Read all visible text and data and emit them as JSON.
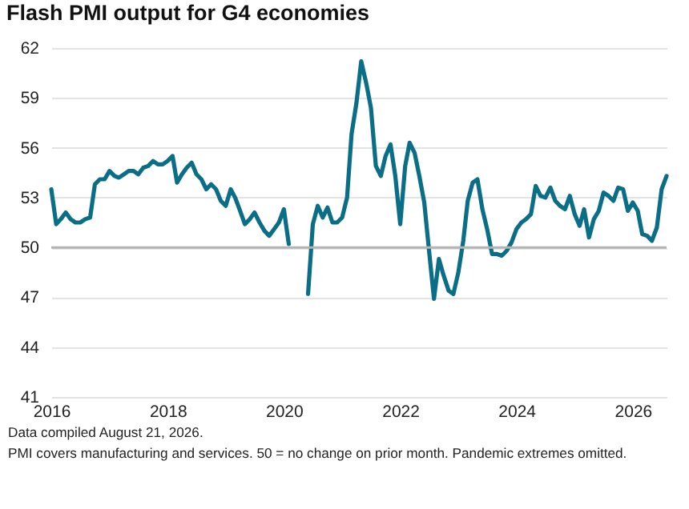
{
  "chart_data": {
    "type": "line",
    "title": "Flash PMI output for G4 economies",
    "x": [
      "2016-01",
      "2016-02",
      "2016-03",
      "2016-04",
      "2016-05",
      "2016-06",
      "2016-07",
      "2016-08",
      "2016-09",
      "2016-10",
      "2016-11",
      "2016-12",
      "2017-01",
      "2017-02",
      "2017-03",
      "2017-04",
      "2017-05",
      "2017-06",
      "2017-07",
      "2017-08",
      "2017-09",
      "2017-10",
      "2017-11",
      "2017-12",
      "2018-01",
      "2018-02",
      "2018-03",
      "2018-04",
      "2018-05",
      "2018-06",
      "2018-07",
      "2018-08",
      "2018-09",
      "2018-10",
      "2018-11",
      "2018-12",
      "2019-01",
      "2019-02",
      "2019-03",
      "2019-04",
      "2019-05",
      "2019-06",
      "2019-07",
      "2019-08",
      "2019-09",
      "2019-10",
      "2019-11",
      "2019-12",
      "2020-01",
      "2020-02",
      "2020-03",
      "2020-04",
      "2020-05",
      "2020-06",
      "2020-07",
      "2020-08",
      "2020-09",
      "2020-10",
      "2020-11",
      "2020-12",
      "2021-01",
      "2021-02",
      "2021-03",
      "2021-04",
      "2021-05",
      "2021-06",
      "2021-07",
      "2021-08",
      "2021-09",
      "2021-10",
      "2021-11",
      "2021-12",
      "2022-01",
      "2022-02",
      "2022-03",
      "2022-04",
      "2022-05",
      "2022-06",
      "2022-07",
      "2022-08",
      "2022-09",
      "2022-10",
      "2022-11",
      "2022-12",
      "2023-01",
      "2023-02",
      "2023-03",
      "2023-04",
      "2023-05",
      "2023-06",
      "2023-07",
      "2023-08",
      "2023-09",
      "2023-10",
      "2023-11",
      "2023-12",
      "2024-01",
      "2024-02",
      "2024-03",
      "2024-04",
      "2024-05",
      "2024-06",
      "2024-07",
      "2024-08",
      "2024-09",
      "2024-10",
      "2024-11",
      "2024-12",
      "2025-01",
      "2025-02",
      "2025-03",
      "2025-04",
      "2025-05",
      "2025-06",
      "2025-07",
      "2025-08",
      "2025-09",
      "2025-10",
      "2025-11",
      "2025-12",
      "2026-01",
      "2026-02",
      "2026-03",
      "2026-04",
      "2026-05",
      "2026-06",
      "2026-07",
      "2026-08"
    ],
    "series": [
      {
        "color": "#0b6e87",
        "values": [
          53.5,
          51.4,
          51.7,
          52.1,
          51.7,
          51.5,
          51.5,
          51.7,
          51.8,
          53.8,
          54.1,
          54.1,
          54.6,
          54.3,
          54.2,
          54.4,
          54.6,
          54.6,
          54.4,
          54.8,
          54.9,
          55.2,
          55.0,
          55.0,
          55.2,
          55.5,
          53.9,
          54.4,
          54.8,
          55.1,
          54.4,
          54.1,
          53.5,
          53.8,
          53.5,
          52.8,
          52.5,
          53.5,
          53.0,
          52.2,
          51.4,
          51.7,
          52.1,
          51.5,
          51.0,
          50.7,
          51.1,
          51.5,
          52.3,
          50.2,
          null,
          null,
          null,
          47.2,
          51.4,
          52.5,
          51.8,
          52.4,
          51.5,
          51.5,
          51.8,
          53.0,
          56.8,
          58.7,
          61.2,
          59.9,
          58.4,
          54.9,
          54.3,
          55.5,
          56.2,
          54.3,
          51.4,
          54.9,
          56.3,
          55.7,
          54.3,
          52.7,
          49.8,
          46.9,
          49.3,
          48.3,
          47.4,
          47.2,
          48.5,
          50.4,
          52.8,
          53.9,
          54.1,
          52.3,
          51.1,
          49.6,
          49.6,
          49.5,
          49.8,
          50.3,
          51.1,
          51.5,
          51.7,
          52.0,
          53.7,
          53.1,
          53.0,
          53.6,
          52.8,
          52.5,
          52.3,
          53.1,
          52.0,
          51.3,
          52.3,
          50.6,
          51.7,
          52.2,
          53.3,
          53.1,
          52.8,
          53.6,
          53.5,
          52.2,
          52.7,
          52.2,
          50.8,
          50.7,
          50.4,
          51.2,
          53.5,
          54.3
        ]
      }
    ],
    "xlim": [
      "2016-01",
      "2026-08"
    ],
    "xticks": [
      "2016",
      "2018",
      "2020",
      "2022",
      "2024",
      "2026"
    ],
    "ylim": [
      41,
      62
    ],
    "yticks": [
      41,
      44,
      47,
      50,
      53,
      56,
      59,
      62
    ],
    "grid": "y",
    "ref_lines": [
      {
        "axis": "y",
        "value": 50,
        "color": "#b3b3b3"
      }
    ],
    "annotations": [
      "Data compiled August 21, 2026.",
      "PMI covers manufacturing and services. 50 = no change on prior month. Pandemic extremes omitted."
    ]
  }
}
